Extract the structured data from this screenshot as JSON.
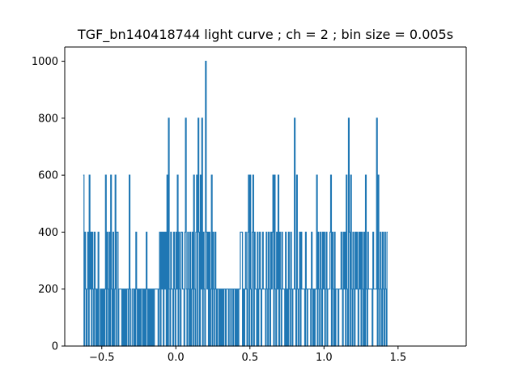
{
  "chart_data": {
    "type": "line",
    "title": "TGF_bn140418744 light curve ; ch = 2 ; bin size = 0.005s",
    "xlabel": "",
    "ylabel": "",
    "xlim": [
      -0.75,
      1.96
    ],
    "ylim": [
      0,
      1050
    ],
    "x_ticks": [
      -0.5,
      0.0,
      0.5,
      1.0,
      1.5
    ],
    "x_tick_labels": [
      "−0.5",
      "0.0",
      "0.5",
      "1.0",
      "1.5"
    ],
    "y_ticks": [
      0,
      200,
      400,
      600,
      800,
      1000
    ],
    "y_tick_labels": [
      "0",
      "200",
      "400",
      "600",
      "800",
      "1000"
    ],
    "line_color": "#1f77b4",
    "grid": false,
    "series": [
      {
        "drawstyle": "steps-post",
        "bin_size": 0.005,
        "x_start": -0.625,
        "values": [
          600,
          0,
          400,
          200,
          0,
          200,
          400,
          0,
          600,
          200,
          400,
          0,
          400,
          200,
          0,
          400,
          200,
          0,
          200,
          0,
          400,
          0,
          0,
          200,
          0,
          200,
          0,
          200,
          0,
          200,
          600,
          0,
          400,
          200,
          0,
          400,
          0,
          600,
          200,
          0,
          400,
          0,
          200,
          600,
          0,
          400,
          400,
          0,
          200,
          200,
          200,
          200,
          0,
          200,
          0,
          200,
          0,
          200,
          0,
          200,
          200,
          0,
          600,
          200,
          0,
          0,
          200,
          200,
          0,
          200,
          0,
          400,
          200,
          0,
          200,
          0,
          200,
          0,
          200,
          200,
          0,
          200,
          0,
          200,
          0,
          400,
          200,
          0,
          200,
          0,
          200,
          0,
          200,
          0,
          200,
          0,
          200,
          200,
          200,
          200,
          200,
          0,
          200,
          400,
          0,
          400,
          200,
          400,
          0,
          400,
          200,
          400,
          0,
          600,
          0,
          800,
          200,
          0,
          400,
          200,
          200,
          0,
          400,
          200,
          0,
          400,
          200,
          600,
          0,
          400,
          200,
          0,
          400,
          400,
          200,
          200,
          0,
          400,
          800,
          200,
          0,
          400,
          200,
          0,
          400,
          0,
          200,
          400,
          0,
          600,
          200,
          0,
          400,
          600,
          0,
          800,
          400,
          0,
          600,
          200,
          800,
          0,
          400,
          200,
          0,
          1000,
          400,
          200,
          400,
          0,
          400,
          0,
          200,
          600,
          0,
          400,
          200,
          0,
          400,
          200,
          0,
          200,
          200,
          0,
          200,
          0,
          200,
          0,
          200,
          0,
          200,
          200,
          0,
          200,
          200,
          200,
          0,
          200,
          200,
          0,
          200,
          200,
          0,
          200,
          200,
          0,
          200,
          0,
          200,
          0,
          200,
          200,
          400,
          400,
          400,
          0,
          200,
          0,
          200,
          400,
          200,
          0,
          400,
          600,
          0,
          600,
          200,
          0,
          400,
          600,
          0,
          400,
          200,
          200,
          0,
          400,
          0,
          200,
          400,
          200,
          0,
          200,
          400,
          200,
          200,
          200,
          0,
          400,
          200,
          0,
          400,
          200,
          0,
          400,
          200,
          400,
          600,
          0,
          600,
          200,
          0,
          400,
          200,
          600,
          0,
          400,
          200,
          0,
          400,
          200,
          200,
          200,
          0,
          400,
          0,
          200,
          0,
          400,
          200,
          0,
          400,
          200,
          0,
          200,
          200,
          800,
          200,
          0,
          600,
          200,
          0,
          200,
          400,
          0,
          400,
          200,
          200,
          200,
          200,
          0,
          400,
          200,
          0,
          200,
          200,
          200,
          200,
          0,
          400,
          200,
          0,
          200,
          0,
          200,
          200,
          600,
          0,
          400,
          200,
          0,
          400,
          200,
          0,
          400,
          200,
          400,
          0,
          200,
          400,
          0,
          200,
          200,
          200,
          400,
          600,
          0,
          400,
          200,
          0,
          400,
          0,
          200,
          200,
          200,
          0,
          200,
          200,
          200,
          400,
          200,
          0,
          400,
          200,
          400,
          0,
          600,
          200,
          0,
          800,
          400,
          0,
          600,
          200,
          0,
          400,
          200,
          0,
          400,
          200,
          400,
          200,
          0,
          400,
          200,
          400,
          0,
          400,
          200,
          0,
          400,
          0,
          600,
          200,
          0,
          400,
          200,
          200,
          200,
          200,
          200,
          0,
          400,
          200,
          200,
          200,
          200,
          800,
          0,
          600,
          200,
          0,
          400,
          200,
          0,
          400,
          200,
          0,
          400,
          200,
          0,
          400
        ]
      }
    ]
  }
}
